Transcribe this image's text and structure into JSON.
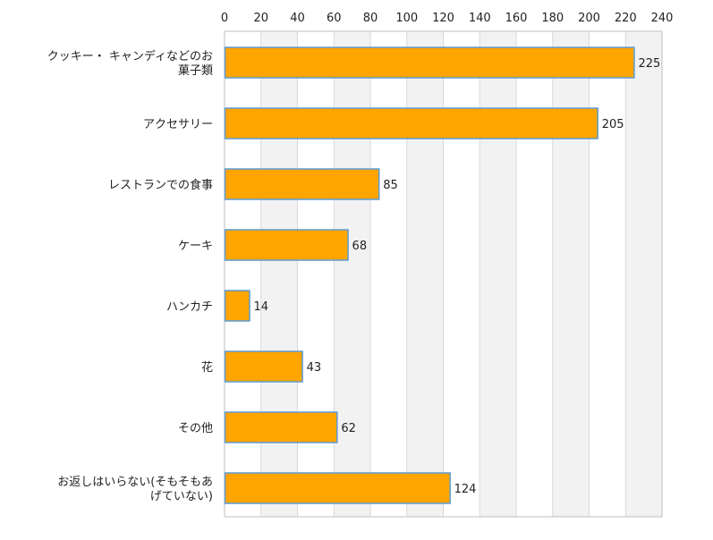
{
  "chart_data": {
    "type": "bar",
    "orientation": "horizontal",
    "categories": [
      [
        "クッキー・ キャンディなどのお",
        "菓子類"
      ],
      [
        "アクセサリー"
      ],
      [
        "レストランでの食事"
      ],
      [
        "ケーキ"
      ],
      [
        "ハンカチ"
      ],
      [
        "花"
      ],
      [
        "その他"
      ],
      [
        "お返しはいらない(そもそもあ",
        "げていない)"
      ]
    ],
    "values": [
      225,
      205,
      85,
      68,
      14,
      43,
      62,
      124
    ],
    "value_labels": [
      "225",
      "205",
      "85",
      "68",
      "14",
      "43",
      "62",
      "124"
    ],
    "xlim": [
      0,
      240
    ],
    "ticks": [
      0,
      20,
      40,
      60,
      80,
      100,
      120,
      140,
      160,
      180,
      200,
      220,
      240
    ],
    "tick_labels": [
      "0",
      "20",
      "40",
      "60",
      "80",
      "100",
      "120",
      "140",
      "160",
      "180",
      "200",
      "220",
      "240"
    ],
    "axis_position": "top",
    "grid": "alternating vertical bands",
    "legend": "none",
    "colors": {
      "bar_fill": "#FFA500",
      "bar_stroke": "#5B9BD5",
      "band_shade": "#F2F2F2",
      "grid_line": "#D9D9D9",
      "axis_line": "#BFBFBF",
      "text": "#222222"
    }
  }
}
